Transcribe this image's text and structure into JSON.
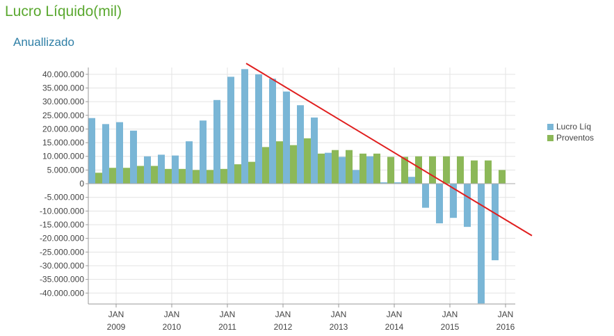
{
  "header": {
    "title": "Lucro Líquido(mil)",
    "subtitle": "Anuallizado"
  },
  "colors": {
    "lucro": "#7ab6d6",
    "proventos": "#8cb858",
    "trend": "#e01e1e",
    "title": "#5aa82f",
    "subtitle": "#2f7fa6"
  },
  "chart_data": {
    "type": "bar",
    "ylim": [
      -44000000,
      42500000
    ],
    "yticks": [
      40000000,
      35000000,
      30000000,
      25000000,
      20000000,
      15000000,
      10000000,
      5000000,
      0,
      -5000000,
      -10000000,
      -15000000,
      -20000000,
      -25000000,
      -30000000,
      -35000000,
      -40000000
    ],
    "ytick_labels": [
      "40.000.000",
      "35.000.000",
      "30.000.000",
      "25.000.000",
      "20.000.000",
      "15.000.000",
      "10.000.000",
      "5.000.000",
      "0",
      "-5.000.000",
      "-10.000.000",
      "-15.000.000",
      "-20.000.000",
      "-25.000.000",
      "-30.000.000",
      "-35.000.000",
      "-40.000.000"
    ],
    "xticks": [
      {
        "month": "JAN",
        "year": "2009",
        "index": 2
      },
      {
        "month": "JAN",
        "year": "2010",
        "index": 6
      },
      {
        "month": "JAN",
        "year": "2011",
        "index": 10
      },
      {
        "month": "JAN",
        "year": "2012",
        "index": 14
      },
      {
        "month": "JAN",
        "year": "2013",
        "index": 18
      },
      {
        "month": "JAN",
        "year": "2014",
        "index": 22
      },
      {
        "month": "JAN",
        "year": "2015",
        "index": 26
      },
      {
        "month": "JAN",
        "year": "2016",
        "index": 30
      }
    ],
    "grid": true,
    "legend_position": "right",
    "series": [
      {
        "name": "Lucro Líq",
        "values": [
          24000000,
          21800000,
          22500000,
          19400000,
          10000000,
          10600000,
          10300000,
          15500000,
          23100000,
          30600000,
          39100000,
          41900000,
          40000000,
          38400000,
          33700000,
          28700000,
          24200000,
          11300000,
          9800000,
          5000000,
          10000000,
          500000,
          500000,
          2500000,
          -8800000,
          -14500000,
          -12500000,
          -15800000,
          -43800000,
          -28000000
        ]
      },
      {
        "name": "Proventos",
        "values": [
          4000000,
          5800000,
          5800000,
          6500000,
          6500000,
          5400000,
          5400000,
          5000000,
          5000000,
          5400000,
          7100000,
          8000000,
          13400000,
          15500000,
          14100000,
          16600000,
          11000000,
          12300000,
          12300000,
          11000000,
          11000000,
          9800000,
          9800000,
          10000000,
          10000000,
          10000000,
          10000000,
          8500000,
          8500000,
          5000000,
          5000000
        ]
      }
    ],
    "trendline": {
      "start": [
        11.35,
        44000000
      ],
      "end": [
        31.9,
        -19000000
      ]
    }
  }
}
